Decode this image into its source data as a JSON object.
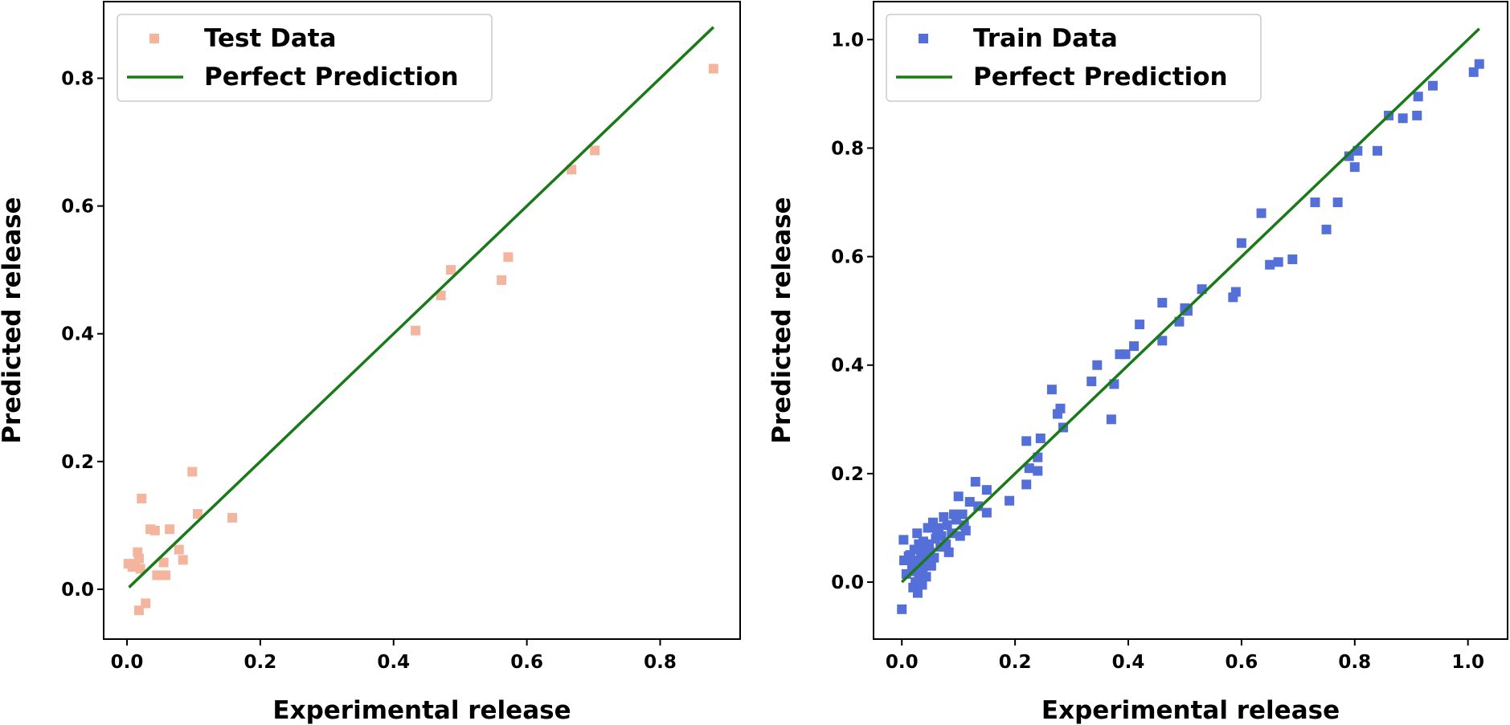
{
  "chart_data": [
    {
      "type": "scatter",
      "xlabel": "Experimental release",
      "ylabel": "Predicted release",
      "xlim": [
        -0.035,
        0.92
      ],
      "ylim": [
        -0.078,
        0.92
      ],
      "xticks": [
        0.0,
        0.2,
        0.4,
        0.6,
        0.8
      ],
      "yticks": [
        0.0,
        0.2,
        0.4,
        0.6,
        0.8
      ],
      "xtick_labels": [
        "0.0",
        "0.2",
        "0.4",
        "0.6",
        "0.8"
      ],
      "ytick_labels": [
        "0.0",
        "0.2",
        "0.4",
        "0.6",
        "0.8"
      ],
      "legend_position": "top-left",
      "series": [
        {
          "name": "Test Data",
          "kind": "scatter",
          "marker": "square",
          "color": "#f4b59f",
          "points": [
            [
              0.002,
              0.04
            ],
            [
              0.008,
              0.035
            ],
            [
              0.012,
              0.04
            ],
            [
              0.016,
              0.058
            ],
            [
              0.018,
              0.048
            ],
            [
              0.02,
              0.032
            ],
            [
              0.018,
              -0.033
            ],
            [
              0.022,
              0.142
            ],
            [
              0.028,
              -0.022
            ],
            [
              0.035,
              0.094
            ],
            [
              0.042,
              0.092
            ],
            [
              0.045,
              0.022
            ],
            [
              0.05,
              0.022
            ],
            [
              0.055,
              0.042
            ],
            [
              0.058,
              0.022
            ],
            [
              0.064,
              0.094
            ],
            [
              0.078,
              0.062
            ],
            [
              0.084,
              0.046
            ],
            [
              0.098,
              0.184
            ],
            [
              0.106,
              0.118
            ],
            [
              0.158,
              0.112
            ],
            [
              0.433,
              0.405
            ],
            [
              0.471,
              0.46
            ],
            [
              0.486,
              0.5
            ],
            [
              0.562,
              0.484
            ],
            [
              0.572,
              0.52
            ],
            [
              0.667,
              0.657
            ],
            [
              0.702,
              0.687
            ],
            [
              0.88,
              0.815
            ]
          ]
        },
        {
          "name": "Perfect Prediction",
          "kind": "line",
          "color": "#1a7a1a",
          "points": [
            [
              0.003,
              0.003
            ],
            [
              0.88,
              0.88
            ]
          ]
        }
      ]
    },
    {
      "type": "scatter",
      "xlabel": "Experimental release",
      "ylabel": "Predicted release",
      "xlim": [
        -0.05,
        1.07
      ],
      "ylim": [
        -0.105,
        1.07
      ],
      "xticks": [
        0.0,
        0.2,
        0.4,
        0.6,
        0.8,
        1.0
      ],
      "yticks": [
        0.0,
        0.2,
        0.4,
        0.6,
        0.8,
        1.0
      ],
      "xtick_labels": [
        "0.0",
        "0.2",
        "0.4",
        "0.6",
        "0.8",
        "1.0"
      ],
      "ytick_labels": [
        "0.0",
        "0.2",
        "0.4",
        "0.6",
        "0.8",
        "1.0"
      ],
      "legend_position": "top-left",
      "series": [
        {
          "name": "Train Data",
          "kind": "scatter",
          "marker": "square",
          "color": "#5470d8",
          "points": [
            [
              0.0,
              -0.05
            ],
            [
              0.003,
              0.078
            ],
            [
              0.004,
              0.04
            ],
            [
              0.008,
              0.015
            ],
            [
              0.012,
              0.048
            ],
            [
              0.015,
              0.05
            ],
            [
              0.018,
              0.03
            ],
            [
              0.02,
              0.04
            ],
            [
              0.02,
              -0.01
            ],
            [
              0.022,
              0.06
            ],
            [
              0.024,
              0.0
            ],
            [
              0.025,
              0.02
            ],
            [
              0.027,
              0.09
            ],
            [
              0.028,
              -0.02
            ],
            [
              0.03,
              0.07
            ],
            [
              0.03,
              0.01
            ],
            [
              0.032,
              0.04
            ],
            [
              0.034,
              0.05
            ],
            [
              0.035,
              0.06
            ],
            [
              0.036,
              -0.005
            ],
            [
              0.037,
              0.02
            ],
            [
              0.038,
              0.075
            ],
            [
              0.04,
              0.03
            ],
            [
              0.042,
              0.045
            ],
            [
              0.043,
              0.01
            ],
            [
              0.045,
              0.065
            ],
            [
              0.046,
              0.1
            ],
            [
              0.048,
              0.07
            ],
            [
              0.05,
              0.055
            ],
            [
              0.052,
              0.03
            ],
            [
              0.055,
              0.11
            ],
            [
              0.057,
              0.045
            ],
            [
              0.06,
              0.08
            ],
            [
              0.062,
              0.095
            ],
            [
              0.065,
              0.1
            ],
            [
              0.068,
              0.065
            ],
            [
              0.07,
              0.085
            ],
            [
              0.074,
              0.12
            ],
            [
              0.078,
              0.07
            ],
            [
              0.08,
              0.105
            ],
            [
              0.083,
              0.055
            ],
            [
              0.088,
              0.09
            ],
            [
              0.092,
              0.125
            ],
            [
              0.096,
              0.115
            ],
            [
              0.1,
              0.158
            ],
            [
              0.103,
              0.085
            ],
            [
              0.107,
              0.125
            ],
            [
              0.11,
              0.105
            ],
            [
              0.113,
              0.095
            ],
            [
              0.12,
              0.148
            ],
            [
              0.13,
              0.185
            ],
            [
              0.135,
              0.14
            ],
            [
              0.15,
              0.128
            ],
            [
              0.15,
              0.17
            ],
            [
              0.19,
              0.15
            ],
            [
              0.22,
              0.26
            ],
            [
              0.22,
              0.18
            ],
            [
              0.225,
              0.21
            ],
            [
              0.24,
              0.23
            ],
            [
              0.24,
              0.205
            ],
            [
              0.245,
              0.265
            ],
            [
              0.265,
              0.355
            ],
            [
              0.275,
              0.31
            ],
            [
              0.28,
              0.32
            ],
            [
              0.285,
              0.285
            ],
            [
              0.335,
              0.37
            ],
            [
              0.345,
              0.4
            ],
            [
              0.37,
              0.3
            ],
            [
              0.375,
              0.365
            ],
            [
              0.385,
              0.42
            ],
            [
              0.395,
              0.42
            ],
            [
              0.41,
              0.435
            ],
            [
              0.42,
              0.475
            ],
            [
              0.46,
              0.445
            ],
            [
              0.46,
              0.515
            ],
            [
              0.49,
              0.48
            ],
            [
              0.5,
              0.505
            ],
            [
              0.505,
              0.5
            ],
            [
              0.53,
              0.54
            ],
            [
              0.585,
              0.525
            ],
            [
              0.59,
              0.535
            ],
            [
              0.6,
              0.625
            ],
            [
              0.635,
              0.68
            ],
            [
              0.65,
              0.585
            ],
            [
              0.665,
              0.59
            ],
            [
              0.69,
              0.595
            ],
            [
              0.73,
              0.7
            ],
            [
              0.75,
              0.65
            ],
            [
              0.77,
              0.7
            ],
            [
              0.79,
              0.785
            ],
            [
              0.8,
              0.765
            ],
            [
              0.805,
              0.795
            ],
            [
              0.84,
              0.795
            ],
            [
              0.86,
              0.86
            ],
            [
              0.885,
              0.855
            ],
            [
              0.91,
              0.86
            ],
            [
              0.912,
              0.895
            ],
            [
              0.938,
              0.915
            ],
            [
              1.01,
              0.94
            ],
            [
              1.02,
              0.955
            ]
          ]
        },
        {
          "name": "Perfect Prediction",
          "kind": "line",
          "color": "#1a7a1a",
          "points": [
            [
              0.0,
              0.0
            ],
            [
              1.02,
              1.02
            ]
          ]
        }
      ]
    }
  ]
}
